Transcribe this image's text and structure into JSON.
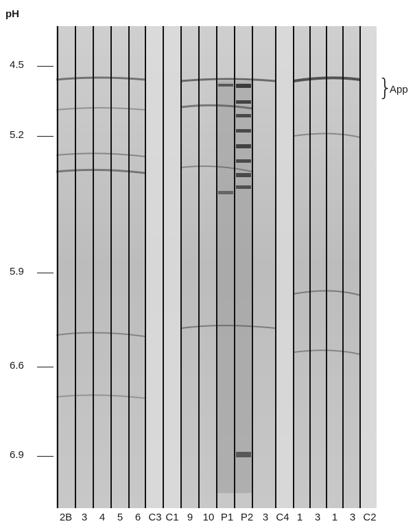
{
  "axis": {
    "title": "pH",
    "ticks": [
      "4.5",
      "5.2",
      "5.9",
      "6.6",
      "6.9"
    ]
  },
  "lanes": [
    "2B",
    "3",
    "4",
    "5",
    "6",
    "C3",
    "C1",
    "9",
    "10",
    "P1",
    "P2",
    "3",
    "C4",
    "1",
    "3",
    "1",
    "3",
    "C2"
  ],
  "annotation": {
    "brace": "}",
    "label": "App"
  },
  "colors": {
    "gel_background": "#bdbdbd",
    "band": "#2a2a2a",
    "lane_separator": "#111111"
  }
}
